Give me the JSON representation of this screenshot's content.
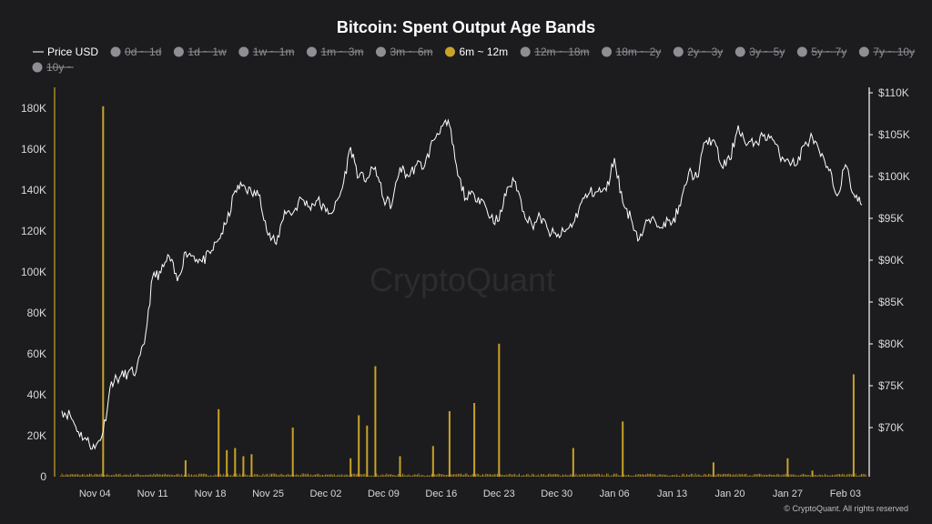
{
  "chart_data": {
    "type": "bar+line",
    "title": "Bitcoin: Spent Output Age Bands",
    "watermark": "CryptoQuant",
    "copyright": "© CryptoQuant. All rights reserved",
    "colors": {
      "background": "#1c1c1f",
      "bar": "#c9a227",
      "price": "#ffffff",
      "disabled": "#8e8e93",
      "text": "#ffffff",
      "axis_text": "#d8d8d8"
    },
    "legend": [
      {
        "label": "Price USD",
        "kind": "line",
        "enabled": true
      },
      {
        "label": "0d ~ 1d",
        "kind": "dot",
        "enabled": false
      },
      {
        "label": "1d ~ 1w",
        "kind": "dot",
        "enabled": false
      },
      {
        "label": "1w ~ 1m",
        "kind": "dot",
        "enabled": false
      },
      {
        "label": "1m ~ 3m",
        "kind": "dot",
        "enabled": false
      },
      {
        "label": "3m ~ 6m",
        "kind": "dot",
        "enabled": false
      },
      {
        "label": "6m ~ 12m",
        "kind": "dot",
        "enabled": true
      },
      {
        "label": "12m ~ 18m",
        "kind": "dot",
        "enabled": false
      },
      {
        "label": "18m ~ 2y",
        "kind": "dot",
        "enabled": false
      },
      {
        "label": "2y ~ 3y",
        "kind": "dot",
        "enabled": false
      },
      {
        "label": "3y ~ 5y",
        "kind": "dot",
        "enabled": false
      },
      {
        "label": "5y ~ 7y",
        "kind": "dot",
        "enabled": false
      },
      {
        "label": "7y ~ 10y",
        "kind": "dot",
        "enabled": false
      },
      {
        "label": "10y ~",
        "kind": "dot",
        "enabled": false
      }
    ],
    "x_ticks": [
      "Nov 04",
      "Nov 11",
      "Nov 18",
      "Nov 25",
      "Dec 02",
      "Dec 09",
      "Dec 16",
      "Dec 23",
      "Dec 30",
      "Jan 06",
      "Jan 13",
      "Jan 20",
      "Jan 27",
      "Feb 03"
    ],
    "left_axis": {
      "ticks": [
        "0",
        "20K",
        "40K",
        "60K",
        "80K",
        "100K",
        "120K",
        "140K",
        "160K",
        "180K"
      ],
      "range": [
        0,
        180000
      ]
    },
    "right_axis": {
      "ticks": [
        "$70K",
        "$75K",
        "$80K",
        "$85K",
        "$90K",
        "$95K",
        "$100K",
        "$105K",
        "$110K"
      ],
      "range": [
        65000,
        110000
      ]
    },
    "date_range": [
      "2024-10-31",
      "2025-02-05"
    ],
    "spent_6m_12m": [
      {
        "date": "2024-11-05",
        "value": 181000
      },
      {
        "date": "2024-11-15",
        "value": 8000
      },
      {
        "date": "2024-11-19",
        "value": 33000
      },
      {
        "date": "2024-11-20",
        "value": 13000
      },
      {
        "date": "2024-11-21",
        "value": 14000
      },
      {
        "date": "2024-11-22",
        "value": 10000
      },
      {
        "date": "2024-11-23",
        "value": 11000
      },
      {
        "date": "2024-11-28",
        "value": 24000
      },
      {
        "date": "2024-12-05",
        "value": 9000
      },
      {
        "date": "2024-12-06",
        "value": 30000
      },
      {
        "date": "2024-12-07",
        "value": 25000
      },
      {
        "date": "2024-12-08",
        "value": 54000
      },
      {
        "date": "2024-12-11",
        "value": 10000
      },
      {
        "date": "2024-12-15",
        "value": 15000
      },
      {
        "date": "2024-12-17",
        "value": 32000
      },
      {
        "date": "2024-12-20",
        "value": 36000
      },
      {
        "date": "2024-12-23",
        "value": 65000
      },
      {
        "date": "2025-01-01",
        "value": 14000
      },
      {
        "date": "2025-01-07",
        "value": 27000
      },
      {
        "date": "2025-01-18",
        "value": 7000
      },
      {
        "date": "2025-01-27",
        "value": 9000
      },
      {
        "date": "2025-01-30",
        "value": 3000
      },
      {
        "date": "2025-02-04",
        "value": 50000
      }
    ],
    "price_usd": [
      {
        "date": "2024-10-31",
        "value": 72000
      },
      {
        "date": "2024-11-01",
        "value": 71500
      },
      {
        "date": "2024-11-02",
        "value": 69500
      },
      {
        "date": "2024-11-03",
        "value": 68500
      },
      {
        "date": "2024-11-04",
        "value": 67500
      },
      {
        "date": "2024-11-05",
        "value": 69500
      },
      {
        "date": "2024-11-06",
        "value": 75500
      },
      {
        "date": "2024-11-07",
        "value": 76000
      },
      {
        "date": "2024-11-08",
        "value": 76500
      },
      {
        "date": "2024-11-09",
        "value": 76700
      },
      {
        "date": "2024-11-10",
        "value": 80000
      },
      {
        "date": "2024-11-11",
        "value": 88000
      },
      {
        "date": "2024-11-12",
        "value": 88500
      },
      {
        "date": "2024-11-13",
        "value": 90500
      },
      {
        "date": "2024-11-14",
        "value": 87500
      },
      {
        "date": "2024-11-15",
        "value": 91000
      },
      {
        "date": "2024-11-16",
        "value": 90500
      },
      {
        "date": "2024-11-17",
        "value": 89800
      },
      {
        "date": "2024-11-18",
        "value": 90800
      },
      {
        "date": "2024-11-19",
        "value": 92500
      },
      {
        "date": "2024-11-20",
        "value": 94500
      },
      {
        "date": "2024-11-21",
        "value": 98300
      },
      {
        "date": "2024-11-22",
        "value": 99000
      },
      {
        "date": "2024-11-23",
        "value": 98000
      },
      {
        "date": "2024-11-24",
        "value": 97800
      },
      {
        "date": "2024-11-25",
        "value": 93000
      },
      {
        "date": "2024-11-26",
        "value": 91900
      },
      {
        "date": "2024-11-27",
        "value": 95900
      },
      {
        "date": "2024-11-28",
        "value": 95600
      },
      {
        "date": "2024-11-29",
        "value": 97400
      },
      {
        "date": "2024-11-30",
        "value": 96400
      },
      {
        "date": "2024-12-01",
        "value": 97200
      },
      {
        "date": "2024-12-02",
        "value": 95800
      },
      {
        "date": "2024-12-03",
        "value": 96000
      },
      {
        "date": "2024-12-04",
        "value": 98600
      },
      {
        "date": "2024-12-05",
        "value": 103500
      },
      {
        "date": "2024-12-06",
        "value": 99900
      },
      {
        "date": "2024-12-07",
        "value": 99800
      },
      {
        "date": "2024-12-08",
        "value": 101100
      },
      {
        "date": "2024-12-09",
        "value": 97300
      },
      {
        "date": "2024-12-10",
        "value": 96600
      },
      {
        "date": "2024-12-11",
        "value": 101100
      },
      {
        "date": "2024-12-12",
        "value": 100000
      },
      {
        "date": "2024-12-13",
        "value": 101400
      },
      {
        "date": "2024-12-14",
        "value": 101300
      },
      {
        "date": "2024-12-15",
        "value": 104300
      },
      {
        "date": "2024-12-16",
        "value": 106000
      },
      {
        "date": "2024-12-17",
        "value": 106100
      },
      {
        "date": "2024-12-18",
        "value": 100100
      },
      {
        "date": "2024-12-19",
        "value": 97400
      },
      {
        "date": "2024-12-20",
        "value": 97800
      },
      {
        "date": "2024-12-21",
        "value": 97200
      },
      {
        "date": "2024-12-22",
        "value": 95100
      },
      {
        "date": "2024-12-23",
        "value": 94700
      },
      {
        "date": "2024-12-24",
        "value": 98700
      },
      {
        "date": "2024-12-25",
        "value": 99400
      },
      {
        "date": "2024-12-26",
        "value": 95800
      },
      {
        "date": "2024-12-27",
        "value": 94200
      },
      {
        "date": "2024-12-28",
        "value": 95200
      },
      {
        "date": "2024-12-29",
        "value": 93500
      },
      {
        "date": "2024-12-30",
        "value": 92800
      },
      {
        "date": "2024-12-31",
        "value": 93400
      },
      {
        "date": "2025-01-01",
        "value": 94400
      },
      {
        "date": "2025-01-02",
        "value": 96900
      },
      {
        "date": "2025-01-03",
        "value": 98100
      },
      {
        "date": "2025-01-04",
        "value": 98200
      },
      {
        "date": "2025-01-05",
        "value": 98300
      },
      {
        "date": "2025-01-06",
        "value": 102200
      },
      {
        "date": "2025-01-07",
        "value": 96900
      },
      {
        "date": "2025-01-08",
        "value": 95000
      },
      {
        "date": "2025-01-09",
        "value": 92500
      },
      {
        "date": "2025-01-10",
        "value": 94700
      },
      {
        "date": "2025-01-11",
        "value": 94500
      },
      {
        "date": "2025-01-12",
        "value": 94500
      },
      {
        "date": "2025-01-13",
        "value": 94500
      },
      {
        "date": "2025-01-14",
        "value": 96500
      },
      {
        "date": "2025-01-15",
        "value": 100500
      },
      {
        "date": "2025-01-16",
        "value": 99900
      },
      {
        "date": "2025-01-17",
        "value": 104100
      },
      {
        "date": "2025-01-18",
        "value": 104400
      },
      {
        "date": "2025-01-19",
        "value": 101200
      },
      {
        "date": "2025-01-20",
        "value": 102000
      },
      {
        "date": "2025-01-21",
        "value": 106100
      },
      {
        "date": "2025-01-22",
        "value": 103700
      },
      {
        "date": "2025-01-23",
        "value": 104000
      },
      {
        "date": "2025-01-24",
        "value": 104800
      },
      {
        "date": "2025-01-25",
        "value": 104800
      },
      {
        "date": "2025-01-26",
        "value": 102600
      },
      {
        "date": "2025-01-27",
        "value": 102100
      },
      {
        "date": "2025-01-28",
        "value": 101300
      },
      {
        "date": "2025-01-29",
        "value": 103700
      },
      {
        "date": "2025-01-30",
        "value": 104700
      },
      {
        "date": "2025-01-31",
        "value": 102400
      },
      {
        "date": "2025-02-01",
        "value": 100700
      },
      {
        "date": "2025-02-02",
        "value": 97700
      },
      {
        "date": "2025-02-03",
        "value": 101400
      },
      {
        "date": "2025-02-04",
        "value": 97900
      },
      {
        "date": "2025-02-05",
        "value": 96600
      }
    ]
  }
}
